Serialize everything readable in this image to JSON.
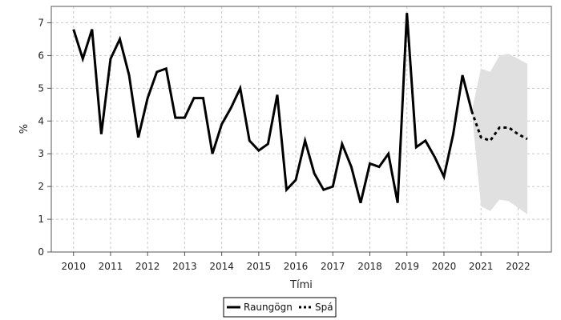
{
  "chart_data": {
    "type": "line",
    "title": "",
    "xlabel": "Tími",
    "ylabel": "%",
    "xlim": [
      2009.4,
      2022.9
    ],
    "ylim": [
      0,
      7.5
    ],
    "x_ticks": [
      "2010",
      "2011",
      "2012",
      "2013",
      "2014",
      "2015",
      "2016",
      "2017",
      "2018",
      "2019",
      "2020",
      "2021",
      "2022"
    ],
    "y_ticks": [
      "0",
      "1",
      "2",
      "3",
      "4",
      "5",
      "6",
      "7"
    ],
    "grid": true,
    "legend_position": "bottom-center",
    "series": [
      {
        "name": "Raungögn",
        "style": "solid",
        "color": "#000000",
        "x": [
          2010.0,
          2010.25,
          2010.5,
          2010.75,
          2011.0,
          2011.25,
          2011.5,
          2011.75,
          2012.0,
          2012.25,
          2012.5,
          2012.75,
          2013.0,
          2013.25,
          2013.5,
          2013.75,
          2014.0,
          2014.25,
          2014.5,
          2014.75,
          2015.0,
          2015.25,
          2015.5,
          2015.75,
          2016.0,
          2016.25,
          2016.5,
          2016.75,
          2017.0,
          2017.25,
          2017.5,
          2017.75,
          2018.0,
          2018.25,
          2018.5,
          2018.75,
          2019.0,
          2019.25,
          2019.5,
          2019.75,
          2020.0,
          2020.25,
          2020.5,
          2020.75
        ],
        "values": [
          6.8,
          5.9,
          6.8,
          3.6,
          5.9,
          6.5,
          5.4,
          3.5,
          4.7,
          5.5,
          5.6,
          4.1,
          4.1,
          4.7,
          4.7,
          3.0,
          3.9,
          4.4,
          5.0,
          3.4,
          3.1,
          3.3,
          4.8,
          1.9,
          2.2,
          3.4,
          2.4,
          1.9,
          2.0,
          3.3,
          2.6,
          1.5,
          2.7,
          2.6,
          3.0,
          1.5,
          7.3,
          3.2,
          3.4,
          2.9,
          2.3,
          3.6,
          5.4,
          4.3
        ]
      },
      {
        "name": "Spá",
        "style": "dashed",
        "color": "#000000",
        "x": [
          2020.75,
          2021.0,
          2021.25,
          2021.5,
          2021.75,
          2022.0,
          2022.25
        ],
        "values": [
          4.3,
          3.5,
          3.4,
          3.8,
          3.8,
          3.6,
          3.45
        ],
        "band_upper": [
          4.3,
          5.6,
          5.5,
          6.0,
          6.05,
          5.9,
          5.75
        ],
        "band_lower": [
          4.3,
          1.4,
          1.25,
          1.6,
          1.55,
          1.35,
          1.15
        ]
      }
    ]
  },
  "colors": {
    "band": "#e0e0e0",
    "grid": "#c8c8c8",
    "frame": "#555555"
  }
}
